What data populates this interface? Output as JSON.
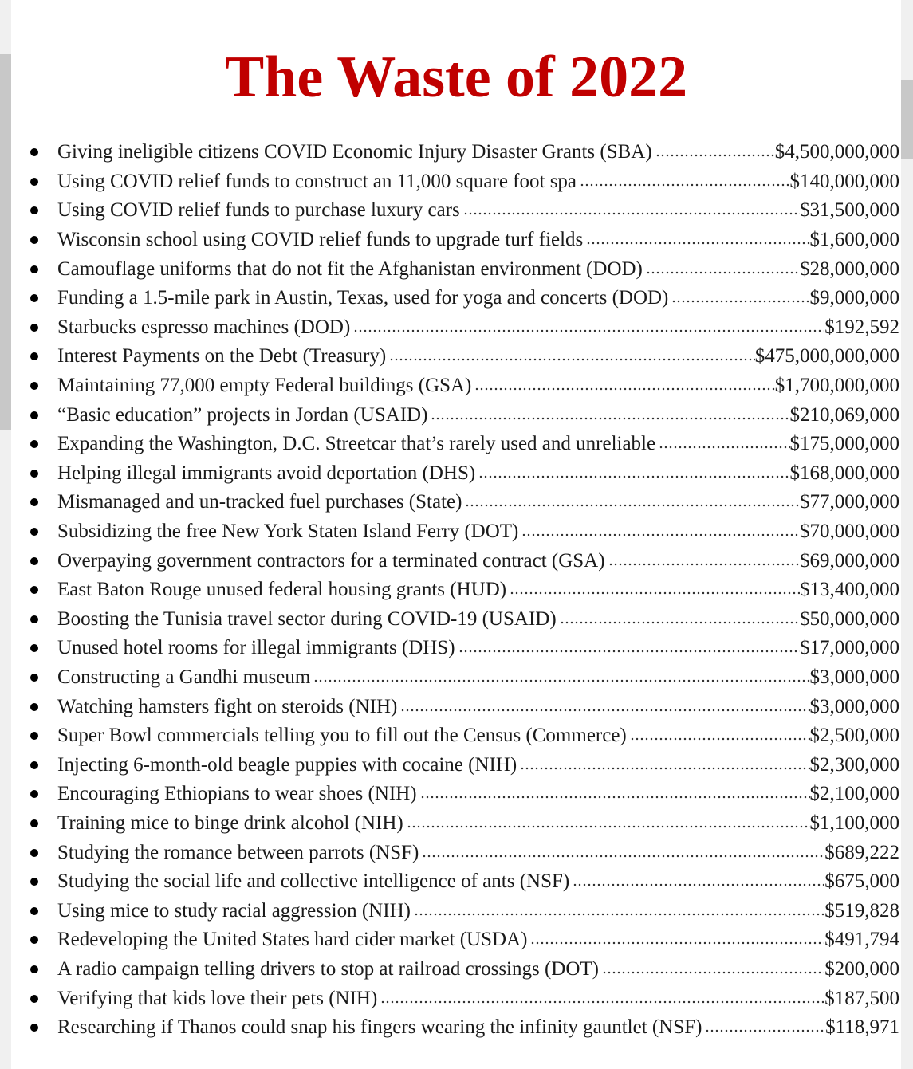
{
  "title": "The Waste of 2022",
  "items": [
    {
      "label": "Giving ineligible citizens COVID Economic Injury Disaster Grants (SBA)",
      "amount": "$4,500,000,000"
    },
    {
      "label": "Using COVID relief funds to construct an 11,000 square foot spa",
      "amount": "$140,000,000"
    },
    {
      "label": "Using COVID relief funds to purchase luxury cars",
      "amount": "$31,500,000"
    },
    {
      "label": "Wisconsin school using COVID relief funds to upgrade turf fields",
      "amount": "$1,600,000"
    },
    {
      "label": "Camouflage uniforms that do not fit the Afghanistan environment (DOD)",
      "amount": "$28,000,000"
    },
    {
      "label": "Funding a 1.5-mile park in Austin, Texas, used for yoga and concerts (DOD)",
      "amount": "$9,000,000"
    },
    {
      "label": "Starbucks espresso machines (DOD)",
      "amount": "$192,592"
    },
    {
      "label": "Interest Payments on the Debt (Treasury)",
      "amount": "$475,000,000,000"
    },
    {
      "label": "Maintaining 77,000 empty Federal buildings (GSA)",
      "amount": "$1,700,000,000"
    },
    {
      "label": "“Basic education” projects in Jordan (USAID)",
      "amount": "$210,069,000"
    },
    {
      "label": "Expanding the Washington, D.C. Streetcar that’s rarely used and unreliable",
      "amount": "$175,000,000"
    },
    {
      "label": "Helping illegal immigrants avoid deportation (DHS)",
      "amount": "$168,000,000"
    },
    {
      "label": "Mismanaged and un-tracked fuel purchases (State)",
      "amount": "$77,000,000"
    },
    {
      "label": "Subsidizing the free New York Staten Island Ferry (DOT)",
      "amount": "$70,000,000"
    },
    {
      "label": "Overpaying government contractors for a terminated contract (GSA)",
      "amount": "$69,000,000"
    },
    {
      "label": "East Baton Rouge unused federal housing grants (HUD)",
      "amount": "$13,400,000"
    },
    {
      "label": "Boosting the Tunisia travel sector during COVID-19 (USAID)",
      "amount": "$50,000,000"
    },
    {
      "label": "Unused hotel rooms for illegal immigrants (DHS)",
      "amount": "$17,000,000"
    },
    {
      "label": "Constructing a Gandhi museum",
      "amount": "$3,000,000"
    },
    {
      "label": "Watching hamsters fight on steroids (NIH)",
      "amount": "$3,000,000"
    },
    {
      "label": "Super Bowl commercials telling you to fill out the Census (Commerce)",
      "amount": "$2,500,000"
    },
    {
      "label": "Injecting 6-month-old beagle puppies with cocaine (NIH)",
      "amount": "$2,300,000"
    },
    {
      "label": "Encouraging Ethiopians to wear shoes (NIH)",
      "amount": "$2,100,000"
    },
    {
      "label": "Training mice to binge drink alcohol (NIH)",
      "amount": "$1,100,000"
    },
    {
      "label": "Studying the romance between parrots (NSF)",
      "amount": "$689,222"
    },
    {
      "label": "Studying the social life and collective intelligence of ants (NSF)",
      "amount": "$675,000"
    },
    {
      "label": "Using mice to study racial aggression (NIH)",
      "amount": "$519,828"
    },
    {
      "label": "Redeveloping the United States hard cider market (USDA)",
      "amount": "$491,794"
    },
    {
      "label": "A radio campaign telling drivers to stop at railroad crossings (DOT)",
      "amount": "$200,000"
    },
    {
      "label": "Verifying that kids love their pets (NIH)",
      "amount": "$187,500"
    },
    {
      "label": "Researching if Thanos could snap his fingers wearing the infinity gauntlet (NSF)",
      "amount": "$118,971"
    }
  ]
}
